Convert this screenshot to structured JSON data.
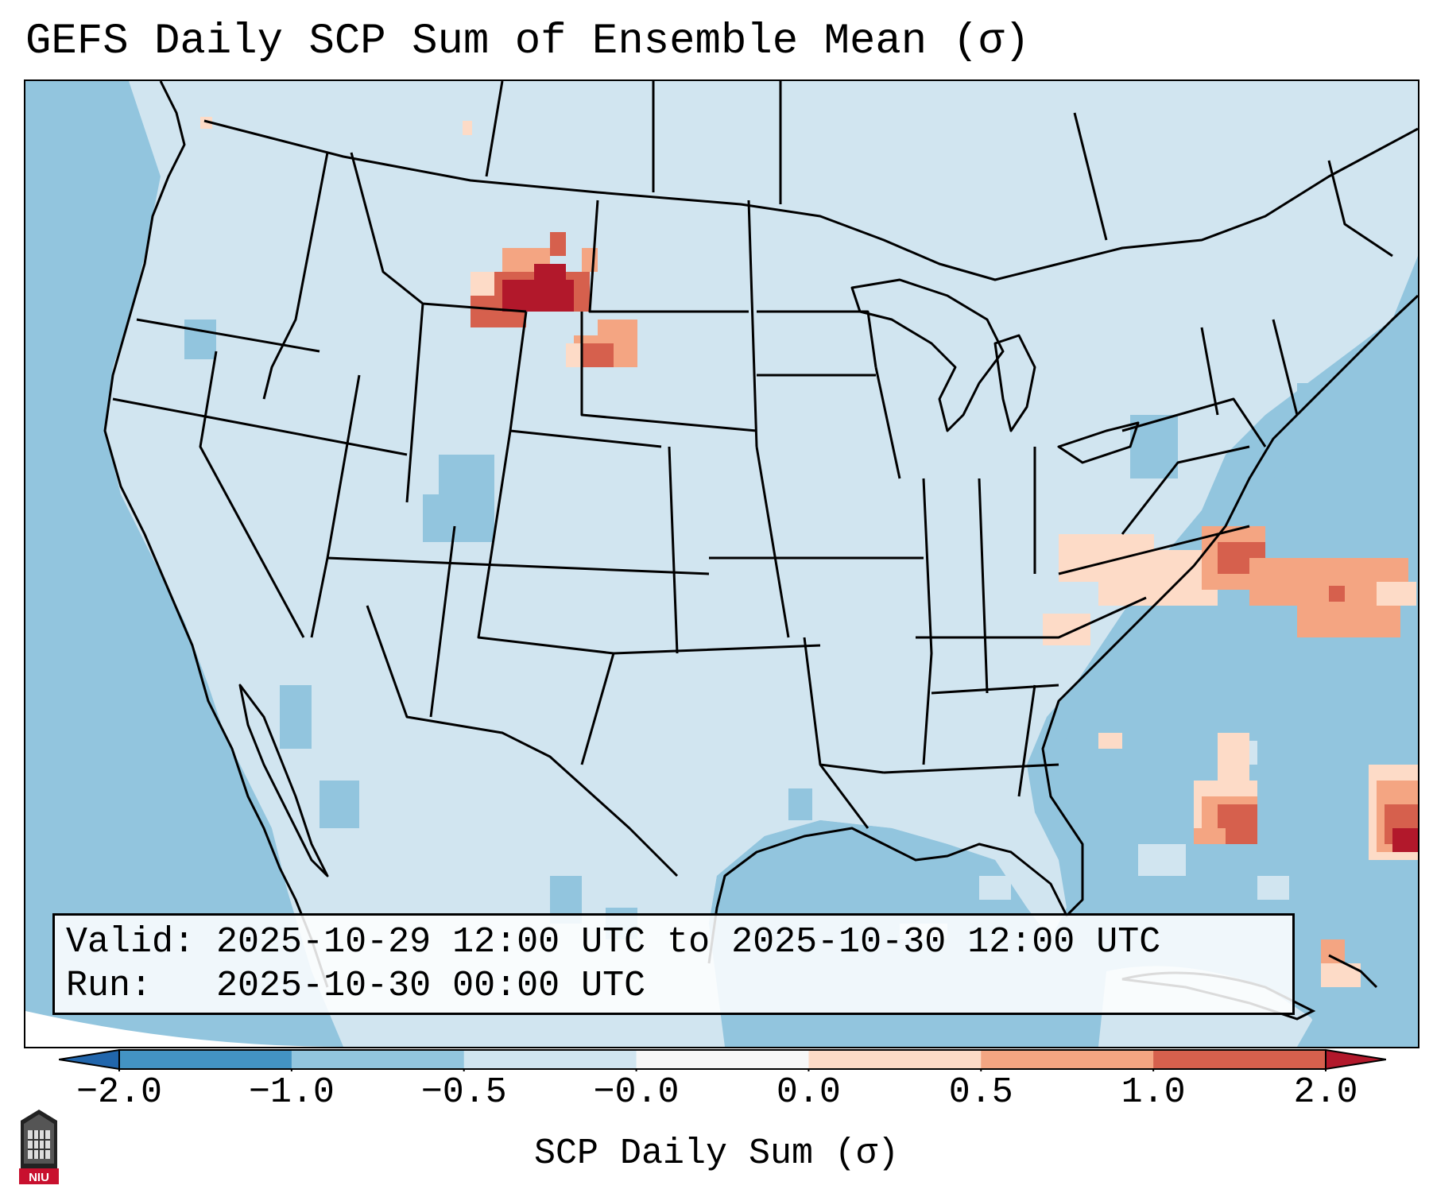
{
  "title": "GEFS Daily SCP Sum of Ensemble Mean (σ)",
  "info": {
    "valid_label": "Valid:",
    "valid_value": "2025-10-29 12:00 UTC to 2025-10-30 12:00 UTC",
    "run_label": "Run:",
    "run_value": "2025-10-30 00:00 UTC"
  },
  "colorbar": {
    "label": "SCP Daily Sum (σ)",
    "ticks": [
      "−2.0",
      "−1.0",
      "−0.5",
      "−0.0",
      "0.0",
      "0.5",
      "1.0",
      "2.0"
    ],
    "bins": [
      {
        "from": "-2.0",
        "to": "-1.0",
        "color": "#4393c3"
      },
      {
        "from": "-1.0",
        "to": "-0.5",
        "color": "#92c5de"
      },
      {
        "from": "-0.5",
        "to": "-0.0",
        "color": "#d1e5f0"
      },
      {
        "from": "-0.0",
        "to": "0.0",
        "color": "#f7f7f7"
      },
      {
        "from": "0.0",
        "to": "0.5",
        "color": "#fddbc7"
      },
      {
        "from": "0.5",
        "to": "1.0",
        "color": "#f4a582"
      },
      {
        "from": "1.0",
        "to": "2.0",
        "color": "#d6604d"
      }
    ],
    "under_color": "#2166ac",
    "over_color": "#b2182b"
  },
  "logo": {
    "text": "NIU"
  },
  "colors": {
    "ocean": "#92c5de",
    "land": "#d1e5f0",
    "border": "#000000"
  }
}
